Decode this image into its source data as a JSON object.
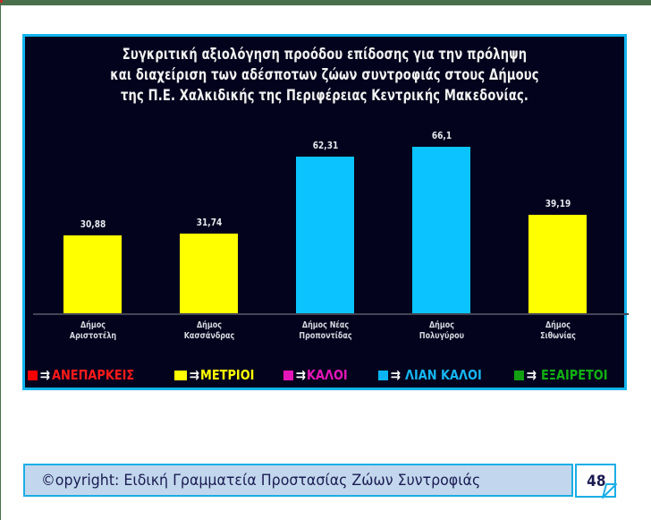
{
  "page": {
    "accent_color": "#12b4ec",
    "background_color": "#03031d"
  },
  "chart_data": {
    "type": "bar",
    "title": "Συγκριτική αξιολόγηση προόδου επίδοσης για την πρόληψη και διαχείριση των αδέσποτων ζώων συντροφιάς στους Δήμους της Π.Ε. Χαλκιδικής της Περιφέρειας Κεντρικής Μακεδονίας.",
    "title_lines": [
      "Συγκριτική αξιολόγηση προόδου επίδοσης για την πρόληψη",
      "και διαχείριση των αδέσποτων ζώων συντροφιάς στους Δήμους",
      "της Π.Ε. Χαλκιδικής της Περιφέρειας Κεντρικής Μακεδονίας."
    ],
    "categories": [
      "Δήμος Αριστοτέλη",
      "Δήμος Κασσάνδρας",
      "Δήμος Νέας Προποντίδας",
      "Δήμος Πολυγύρου",
      "Δήμος Σιθωνίας"
    ],
    "category_lines": [
      [
        "Δήμος",
        "Αριστοτέλη"
      ],
      [
        "Δήμος",
        "Κασσάνδρας"
      ],
      [
        "Δήμος Νέας",
        "Προποντίδας"
      ],
      [
        "Δήμος",
        "Πολυγύρου"
      ],
      [
        "Δήμος",
        "Σιθωνίας"
      ]
    ],
    "values": [
      30.88,
      31.74,
      62.31,
      66.1,
      39.19
    ],
    "value_labels": [
      "30,88",
      "31,74",
      "62,31",
      "66,1",
      "39,19"
    ],
    "bar_colors": [
      "#ffff00",
      "#ffff00",
      "#0bc4ff",
      "#0bc4ff",
      "#ffff00"
    ],
    "bar_classes": [
      "ΜΕΤΡΙΟΙ",
      "ΜΕΤΡΙΟΙ",
      "ΛΙΑΝ ΚΑΛΟΙ",
      "ΛΙΑΝ ΚΑΛΟΙ",
      "ΜΕΤΡΙΟΙ"
    ],
    "xlabel": "",
    "ylabel": "",
    "ylim": [
      0,
      70
    ],
    "grid": false,
    "legend_position": "bottom",
    "legend": [
      {
        "label": "ΑΝΕΠΑΡΚΕΙΣ",
        "color": "#ff0000"
      },
      {
        "label": "ΜΕΤΡΙΟΙ",
        "color": "#ffff00"
      },
      {
        "label": "ΚΑΛΟΙ",
        "color": "#e516b8"
      },
      {
        "label": "ΛΙΑΝ ΚΑΛΟΙ",
        "color": "#0bb4f4"
      },
      {
        "label": "ΕΞΑΙΡΕΤΟΙ",
        "color": "#12a012"
      }
    ]
  },
  "legend": {
    "arrow_glyph": "⇉",
    "items": [
      {
        "label": "ΑΝΕΠΑΡΚΕΙΣ"
      },
      {
        "label": "ΜΕΤΡΙΟΙ"
      },
      {
        "label": "ΚΑΛΟΙ"
      },
      {
        "label": "ΛΙΑΝ ΚΑΛΟΙ"
      },
      {
        "label": "ΕΞΑΙΡΕΤΟΙ"
      }
    ]
  },
  "footer": {
    "copyright_text": "©opyright: Ειδική Γραμματεία Προστασίας Ζώων Συντροφιάς",
    "page_number": "48"
  }
}
